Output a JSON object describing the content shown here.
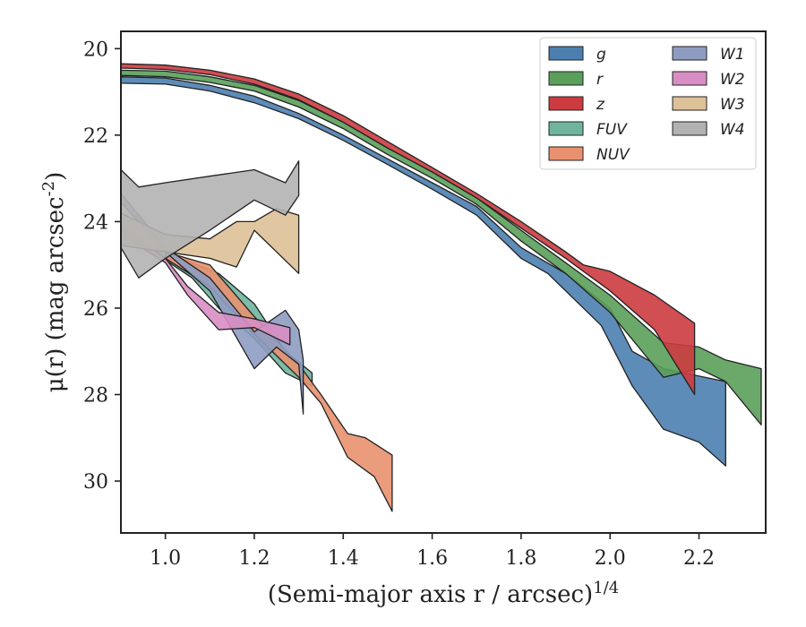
{
  "chart_data": {
    "type": "area",
    "xlabel": "(Semi-major axis r / arcsec)^{1/4}",
    "ylabel": "μ(r) (mag arcsec^{-2})",
    "xlim": [
      0.9,
      2.35
    ],
    "ylim": [
      31.2,
      19.6
    ],
    "y_inverted": true,
    "xticks": [
      "1.0",
      "1.2",
      "1.4",
      "1.6",
      "1.8",
      "2.0",
      "2.2"
    ],
    "yticks": [
      "20",
      "22",
      "24",
      "26",
      "28",
      "30"
    ],
    "legend_placement": "top-right",
    "legend_columns": 2,
    "grid": false,
    "series": [
      {
        "name": "g",
        "color": "#4c7fb0",
        "upper": [
          [
            0.9,
            20.65
          ],
          [
            1.0,
            20.68
          ],
          [
            1.1,
            20.85
          ],
          [
            1.2,
            21.1
          ],
          [
            1.3,
            21.5
          ],
          [
            1.4,
            22.0
          ],
          [
            1.5,
            22.55
          ],
          [
            1.6,
            23.1
          ],
          [
            1.7,
            23.65
          ],
          [
            1.8,
            24.6
          ],
          [
            1.9,
            25.2
          ],
          [
            2.0,
            26.0
          ],
          [
            2.05,
            27.0
          ],
          [
            2.12,
            27.4
          ],
          [
            2.26,
            27.7
          ]
        ],
        "lower": [
          [
            0.9,
            20.8
          ],
          [
            1.0,
            20.82
          ],
          [
            1.1,
            20.98
          ],
          [
            1.2,
            21.25
          ],
          [
            1.3,
            21.62
          ],
          [
            1.4,
            22.12
          ],
          [
            1.5,
            22.68
          ],
          [
            1.6,
            23.25
          ],
          [
            1.7,
            23.85
          ],
          [
            1.8,
            24.85
          ],
          [
            1.86,
            25.2
          ],
          [
            1.98,
            26.4
          ],
          [
            2.05,
            27.8
          ],
          [
            2.12,
            28.8
          ],
          [
            2.2,
            29.1
          ],
          [
            2.26,
            29.65
          ]
        ]
      },
      {
        "name": "r",
        "color": "#5aa05a",
        "upper": [
          [
            0.9,
            20.5
          ],
          [
            1.0,
            20.52
          ],
          [
            1.1,
            20.65
          ],
          [
            1.2,
            20.85
          ],
          [
            1.3,
            21.2
          ],
          [
            1.4,
            21.7
          ],
          [
            1.5,
            22.3
          ],
          [
            1.6,
            22.85
          ],
          [
            1.7,
            23.45
          ],
          [
            1.8,
            24.2
          ],
          [
            1.9,
            24.95
          ],
          [
            2.0,
            25.7
          ],
          [
            2.12,
            26.8
          ],
          [
            2.2,
            26.9
          ],
          [
            2.26,
            27.2
          ],
          [
            2.34,
            27.4
          ]
        ],
        "lower": [
          [
            0.9,
            20.62
          ],
          [
            1.0,
            20.65
          ],
          [
            1.1,
            20.78
          ],
          [
            1.2,
            20.98
          ],
          [
            1.3,
            21.35
          ],
          [
            1.4,
            21.85
          ],
          [
            1.5,
            22.45
          ],
          [
            1.6,
            23.0
          ],
          [
            1.7,
            23.6
          ],
          [
            1.8,
            24.45
          ],
          [
            1.9,
            25.2
          ],
          [
            2.0,
            26.1
          ],
          [
            2.12,
            27.6
          ],
          [
            2.2,
            27.4
          ],
          [
            2.26,
            27.7
          ],
          [
            2.34,
            28.7
          ]
        ]
      },
      {
        "name": "z",
        "color": "#cc3b3f",
        "upper": [
          [
            0.9,
            20.35
          ],
          [
            1.0,
            20.38
          ],
          [
            1.1,
            20.5
          ],
          [
            1.2,
            20.7
          ],
          [
            1.3,
            21.05
          ],
          [
            1.4,
            21.55
          ],
          [
            1.5,
            22.15
          ],
          [
            1.6,
            22.75
          ],
          [
            1.7,
            23.35
          ],
          [
            1.8,
            24.0
          ],
          [
            1.9,
            24.7
          ],
          [
            1.94,
            25.0
          ],
          [
            2.0,
            25.15
          ],
          [
            2.1,
            25.7
          ],
          [
            2.19,
            26.35
          ]
        ],
        "lower": [
          [
            0.9,
            20.45
          ],
          [
            1.0,
            20.48
          ],
          [
            1.1,
            20.6
          ],
          [
            1.2,
            20.82
          ],
          [
            1.3,
            21.18
          ],
          [
            1.4,
            21.7
          ],
          [
            1.5,
            22.3
          ],
          [
            1.6,
            22.85
          ],
          [
            1.7,
            23.45
          ],
          [
            1.8,
            24.15
          ],
          [
            1.9,
            24.85
          ],
          [
            2.0,
            25.6
          ],
          [
            2.1,
            26.5
          ],
          [
            2.19,
            28.0
          ]
        ]
      },
      {
        "name": "FUV",
        "color": "#6fb59e",
        "upper": [
          [
            0.98,
            24.6
          ],
          [
            1.06,
            24.95
          ],
          [
            1.12,
            25.2
          ],
          [
            1.2,
            25.9
          ],
          [
            1.27,
            27.0
          ],
          [
            1.33,
            27.5
          ]
        ],
        "lower": [
          [
            0.98,
            24.75
          ],
          [
            1.06,
            25.3
          ],
          [
            1.12,
            26.0
          ],
          [
            1.2,
            26.7
          ],
          [
            1.27,
            27.5
          ],
          [
            1.33,
            27.8
          ]
        ]
      },
      {
        "name": "NUV",
        "color": "#e9916f",
        "upper": [
          [
            1.0,
            24.7
          ],
          [
            1.1,
            25.0
          ],
          [
            1.2,
            26.2
          ],
          [
            1.3,
            27.3
          ],
          [
            1.35,
            28.0
          ],
          [
            1.41,
            28.9
          ],
          [
            1.45,
            29.0
          ],
          [
            1.51,
            29.4
          ]
        ],
        "lower": [
          [
            1.0,
            24.85
          ],
          [
            1.1,
            25.5
          ],
          [
            1.2,
            26.6
          ],
          [
            1.3,
            27.6
          ],
          [
            1.35,
            28.2
          ],
          [
            1.41,
            29.45
          ],
          [
            1.47,
            29.9
          ],
          [
            1.51,
            30.7
          ]
        ]
      },
      {
        "name": "W1",
        "color": "#8f9cc2",
        "upper": [
          [
            0.9,
            23.35
          ],
          [
            1.0,
            24.6
          ],
          [
            1.1,
            25.3
          ],
          [
            1.2,
            26.55
          ],
          [
            1.27,
            26.05
          ],
          [
            1.3,
            26.5
          ],
          [
            1.31,
            27.2
          ]
        ],
        "lower": [
          [
            0.9,
            23.55
          ],
          [
            1.0,
            24.7
          ],
          [
            1.1,
            25.6
          ],
          [
            1.2,
            27.4
          ],
          [
            1.25,
            26.9
          ],
          [
            1.3,
            27.3
          ],
          [
            1.31,
            28.45
          ]
        ]
      },
      {
        "name": "W2",
        "color": "#d88ec4",
        "upper": [
          [
            0.9,
            24.1
          ],
          [
            1.0,
            24.85
          ],
          [
            1.05,
            25.5
          ],
          [
            1.12,
            26.1
          ],
          [
            1.2,
            26.25
          ],
          [
            1.28,
            26.45
          ]
        ],
        "lower": [
          [
            0.9,
            24.3
          ],
          [
            1.0,
            24.95
          ],
          [
            1.05,
            25.7
          ],
          [
            1.12,
            26.5
          ],
          [
            1.2,
            26.45
          ],
          [
            1.28,
            26.85
          ]
        ]
      },
      {
        "name": "W3",
        "color": "#ddc197",
        "upper": [
          [
            0.9,
            23.8
          ],
          [
            1.0,
            24.3
          ],
          [
            1.1,
            24.4
          ],
          [
            1.16,
            24.0
          ],
          [
            1.2,
            24.0
          ],
          [
            1.25,
            23.7
          ],
          [
            1.3,
            23.85
          ]
        ],
        "lower": [
          [
            0.9,
            24.55
          ],
          [
            1.0,
            24.7
          ],
          [
            1.1,
            24.85
          ],
          [
            1.16,
            25.05
          ],
          [
            1.2,
            24.2
          ],
          [
            1.3,
            25.2
          ]
        ]
      },
      {
        "name": "W4",
        "color": "#b2b2b2",
        "upper": [
          [
            0.9,
            22.8
          ],
          [
            0.94,
            23.2
          ],
          [
            1.0,
            23.1
          ],
          [
            1.1,
            22.95
          ],
          [
            1.2,
            22.8
          ],
          [
            1.27,
            23.1
          ],
          [
            1.3,
            22.6
          ]
        ],
        "lower": [
          [
            0.9,
            24.6
          ],
          [
            0.94,
            25.3
          ],
          [
            1.0,
            24.85
          ],
          [
            1.1,
            24.2
          ],
          [
            1.2,
            23.5
          ],
          [
            1.27,
            23.85
          ],
          [
            1.3,
            23.4
          ]
        ]
      }
    ]
  }
}
